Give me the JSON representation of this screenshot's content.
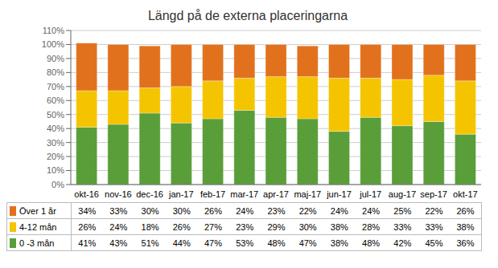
{
  "chart_data": {
    "type": "bar",
    "title": "Längd på de externa placeringarna",
    "categories": [
      "okt-16",
      "nov-16",
      "dec-16",
      "jan-17",
      "feb-17",
      "mar-17",
      "apr-17",
      "maj-17",
      "jun-17",
      "jul-17",
      "aug-17",
      "sep-17",
      "okt-17"
    ],
    "series": [
      {
        "name": "0 -3 mån",
        "color": "#5A9E3A",
        "values": [
          41,
          43,
          51,
          44,
          47,
          53,
          48,
          47,
          38,
          48,
          42,
          45,
          36
        ],
        "value_labels": [
          "41%",
          "43%",
          "51%",
          "44%",
          "47%",
          "53%",
          "48%",
          "47%",
          "38%",
          "48%",
          "42%",
          "45%",
          "36%"
        ]
      },
      {
        "name": "4-12 mån",
        "color": "#F5C400",
        "values": [
          26,
          24,
          18,
          26,
          27,
          23,
          29,
          30,
          38,
          28,
          33,
          33,
          38
        ],
        "value_labels": [
          "26%",
          "24%",
          "18%",
          "26%",
          "27%",
          "23%",
          "29%",
          "30%",
          "38%",
          "28%",
          "33%",
          "33%",
          "38%"
        ]
      },
      {
        "name": "Över 1 år",
        "color": "#E2711D",
        "values": [
          34,
          33,
          30,
          30,
          26,
          24,
          23,
          22,
          24,
          24,
          25,
          22,
          26
        ],
        "value_labels": [
          "34%",
          "33%",
          "30%",
          "30%",
          "26%",
          "24%",
          "23%",
          "22%",
          "24%",
          "24%",
          "25%",
          "22%",
          "26%"
        ]
      }
    ],
    "stacked": true,
    "ylim": [
      0,
      110
    ],
    "yticks": [
      {
        "value": 0,
        "label": "0%"
      },
      {
        "value": 10,
        "label": "10%"
      },
      {
        "value": 20,
        "label": "20%"
      },
      {
        "value": 30,
        "label": "30%"
      },
      {
        "value": 40,
        "label": "40%"
      },
      {
        "value": 50,
        "label": "50%"
      },
      {
        "value": 60,
        "label": "60%"
      },
      {
        "value": 70,
        "label": "70%"
      },
      {
        "value": 80,
        "label": "80%"
      },
      {
        "value": 90,
        "label": "90%"
      },
      {
        "value": 100,
        "label": "100%"
      },
      {
        "value": 110,
        "label": "110%"
      }
    ],
    "grid": true
  }
}
